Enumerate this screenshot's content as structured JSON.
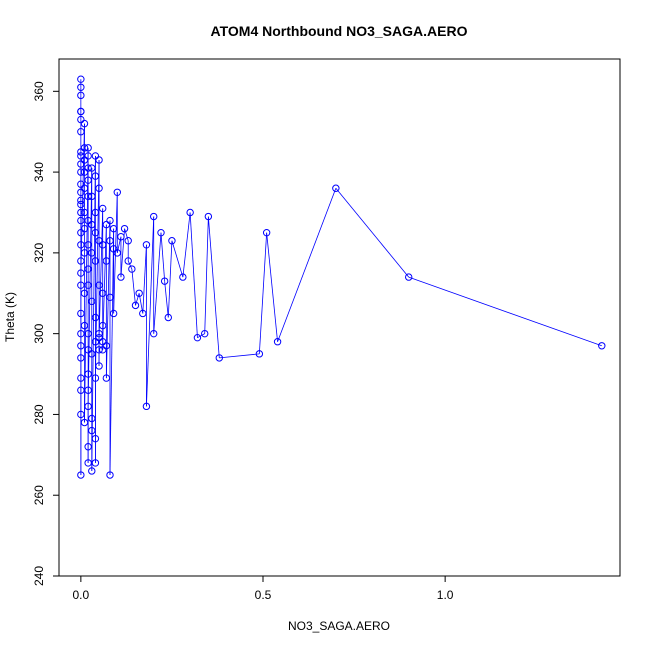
{
  "chart_data": {
    "type": "scatter",
    "title": "ATOM4 Northbound NO3_SAGA.AERO",
    "xlabel": "NO3_SAGA.AERO",
    "ylabel": "Theta (K)",
    "xlim": [
      -0.06,
      1.48
    ],
    "ylim": [
      240,
      368
    ],
    "x_ticks": [
      0.0,
      0.5,
      1.0
    ],
    "x_tick_labels": [
      "0.0",
      "0.5",
      "1.0"
    ],
    "y_ticks": [
      240,
      260,
      280,
      300,
      320,
      340,
      360
    ],
    "y_tick_labels": [
      "240",
      "260",
      "280",
      "300",
      "320",
      "340",
      "360"
    ],
    "grid": false,
    "legend": "none",
    "marker": "open-circle",
    "connected": true,
    "series": [
      {
        "color": "#0000ff",
        "x": [
          0.0,
          0.0,
          0.0,
          0.0,
          0.0,
          0.0,
          0.0,
          0.0,
          0.0,
          0.0,
          0.0,
          0.0,
          0.0,
          0.0,
          0.0,
          0.0,
          0.0,
          0.0,
          0.0,
          0.0,
          0.0,
          0.0,
          0.0,
          0.0,
          0.0,
          0.0,
          0.0,
          0.0,
          0.0,
          0.0,
          0.01,
          0.01,
          0.01,
          0.01,
          0.01,
          0.01,
          0.01,
          0.01,
          0.01,
          0.01,
          0.01,
          0.02,
          0.02,
          0.02,
          0.02,
          0.02,
          0.02,
          0.02,
          0.02,
          0.02,
          0.02,
          0.02,
          0.02,
          0.02,
          0.02,
          0.02,
          0.02,
          0.03,
          0.03,
          0.03,
          0.03,
          0.03,
          0.03,
          0.03,
          0.03,
          0.03,
          0.04,
          0.04,
          0.04,
          0.04,
          0.04,
          0.04,
          0.04,
          0.04,
          0.04,
          0.04,
          0.05,
          0.05,
          0.05,
          0.05,
          0.05,
          0.05,
          0.05,
          0.05,
          0.06,
          0.06,
          0.06,
          0.06,
          0.06,
          0.06,
          0.07,
          0.07,
          0.07,
          0.07,
          0.08,
          0.08,
          0.08,
          0.08,
          0.09,
          0.09,
          0.09,
          0.1,
          0.1,
          0.11,
          0.11,
          0.12,
          0.13,
          0.13,
          0.14,
          0.15,
          0.16,
          0.17,
          0.18,
          0.18,
          0.2,
          0.2,
          0.22,
          0.23,
          0.24,
          0.25,
          0.28,
          0.3,
          0.32,
          0.34,
          0.35,
          0.38,
          0.49,
          0.51,
          0.54,
          0.7,
          0.9,
          1.43
        ],
        "y": [
          363,
          361,
          359,
          355,
          355,
          353,
          350,
          345,
          344,
          342,
          340,
          337,
          335,
          333,
          332,
          330,
          328,
          325,
          322,
          318,
          312,
          305,
          300,
          294,
          289,
          286,
          280,
          265,
          297,
          315,
          352,
          346,
          343,
          340,
          336,
          330,
          326,
          320,
          310,
          302,
          278,
          346,
          344,
          341,
          338,
          334,
          328,
          322,
          316,
          312,
          300,
          296,
          290,
          286,
          272,
          268,
          282,
          341,
          334,
          327,
          320,
          308,
          295,
          279,
          276,
          266,
          344,
          339,
          330,
          325,
          318,
          304,
          298,
          274,
          268,
          289,
          343,
          336,
          323,
          312,
          300,
          296,
          292,
          299,
          331,
          322,
          310,
          302,
          296,
          298,
          327,
          318,
          297,
          289,
          328,
          323,
          309,
          265,
          326,
          321,
          305,
          335,
          320,
          324,
          314,
          326,
          323,
          318,
          316,
          307,
          310,
          305,
          322,
          282,
          329,
          300,
          325,
          313,
          304,
          323,
          314,
          330,
          299,
          300,
          329,
          294,
          295,
          325,
          298,
          336,
          314,
          297
        ]
      }
    ]
  }
}
